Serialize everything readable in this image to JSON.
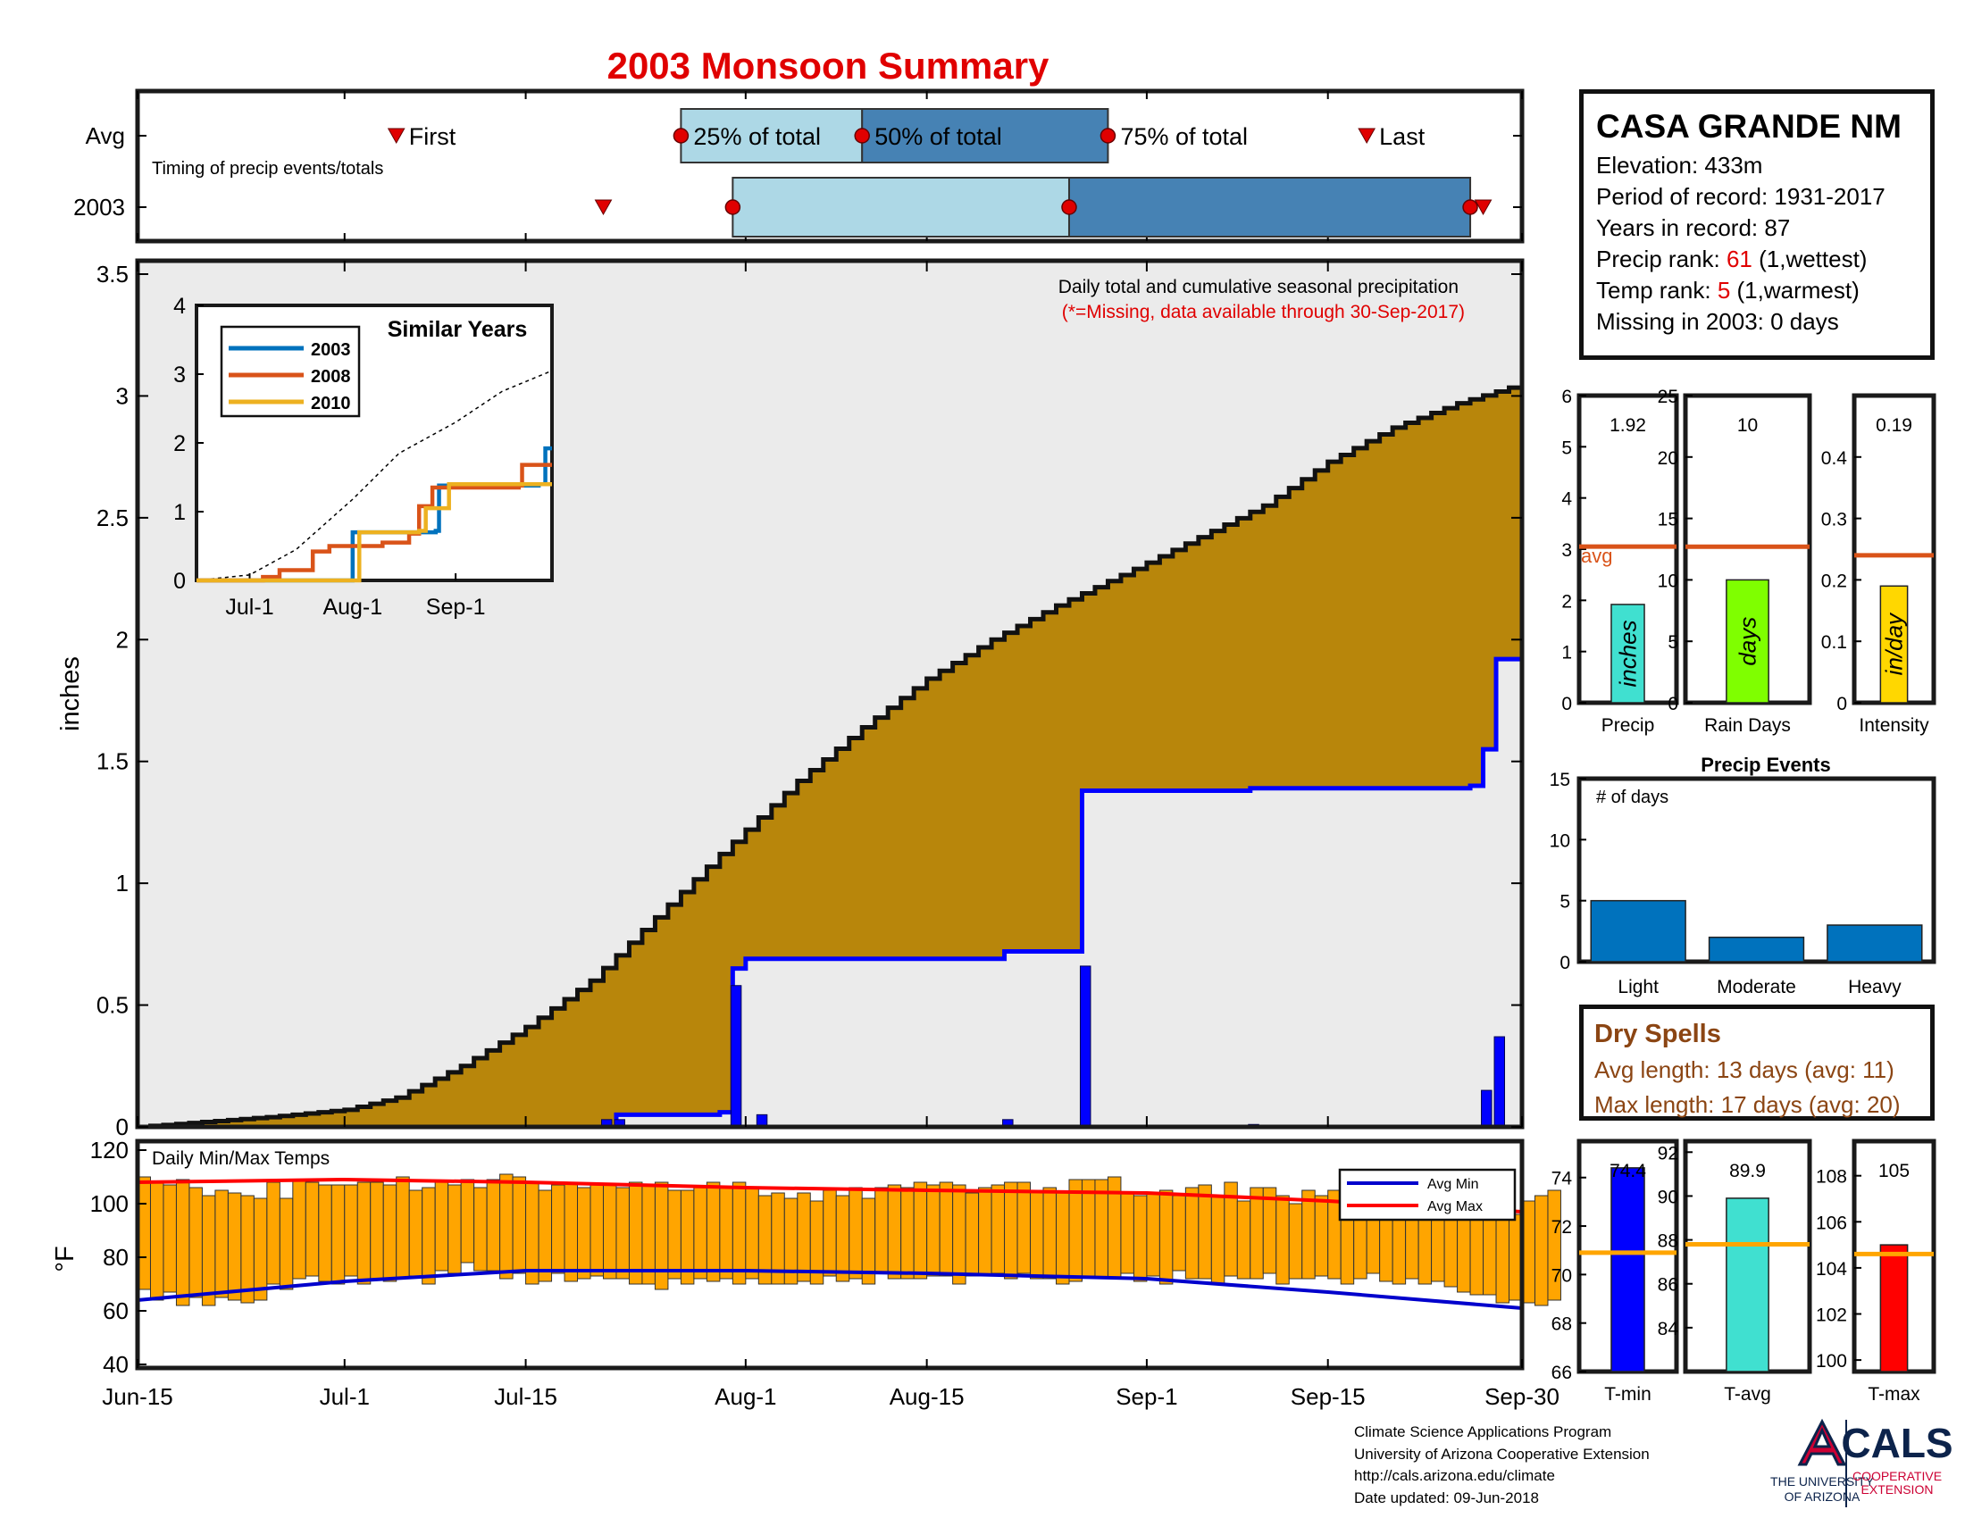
{
  "title": "2003 Monsoon Summary",
  "station": {
    "name": "CASA GRANDE NM",
    "elevation": "Elevation: 433m",
    "period": "Period of record: 1931-2017",
    "years": "Years in record: 87",
    "precip_rank_label": "Precip rank: ",
    "precip_rank": "61",
    "precip_rank_note": " (1,wettest)",
    "temp_rank_label": "Temp rank: ",
    "temp_rank": "5",
    "temp_rank_note": " (1,warmest)",
    "missing": "Missing in 2003: 0 days"
  },
  "dry_spells": {
    "title": "Dry Spells",
    "avg": "Avg length: 13 days (avg: 11)",
    "max": "Max length: 17 days (avg: 20)"
  },
  "credits": {
    "line1": "Climate Science Applications Program",
    "line2": "University of Arizona Cooperative Extension",
    "line3": "http://cals.arizona.edu/climate",
    "line4": " Date updated: 09-Jun-2018",
    "ua_line1": "THE UNIVERSITY",
    "ua_line2": "OF ARIZONA",
    "cals": "CALS",
    "cals_line1": "COOPERATIVE",
    "cals_line2": "EXTENSION"
  },
  "colors": {
    "avg_fill": "#b8860b",
    "year_line": "#0000ff",
    "temp_bar": "#ffa500",
    "avg_min": "#0000cc",
    "avg_max": "#ff0000",
    "box_light": "#add8e6",
    "box_dark": "#4682b4",
    "marker": "#e00000"
  },
  "chart_data": [
    {
      "id": "timing",
      "type": "box",
      "subtitle": "Timing of precip events/totals",
      "rows": [
        {
          "label": "Avg",
          "first": "2003-07-05",
          "q25": "2003-07-27",
          "q50": "2003-08-10",
          "q75": "2003-08-29",
          "last": "2003-09-18"
        },
        {
          "label": "2003",
          "first": "2003-07-21",
          "q25": "2003-07-31",
          "q50": "2003-08-26",
          "q75": "2003-09-26",
          "last": "2003-09-27"
        }
      ],
      "legend": [
        "First",
        "25% of total",
        "50% of total",
        "75% of total",
        "Last"
      ]
    },
    {
      "id": "main",
      "type": "area",
      "annotation": "Daily total and cumulative seasonal precipitation",
      "annotation2": "(*=Missing, data available through 30-Sep-2017)",
      "ylabel": "inches",
      "ylim": [
        0,
        3.5
      ],
      "yticks": [
        "0",
        "0.5",
        "1",
        "1.5",
        "2",
        "2.5",
        "3",
        "3.5"
      ],
      "xticks": [
        "Jun-15",
        "Jul-1",
        "Jul-15",
        "Aug-1",
        "Aug-15",
        "Sep-1",
        "Sep-15",
        "Sep-30"
      ],
      "avg_cumulative": {
        "x": [
          "2003-06-15",
          "2003-06-20",
          "2003-06-25",
          "2003-07-01",
          "2003-07-05",
          "2003-07-10",
          "2003-07-15",
          "2003-07-20",
          "2003-07-25",
          "2003-07-30",
          "2003-08-05",
          "2003-08-10",
          "2003-08-15",
          "2003-08-20",
          "2003-08-25",
          "2003-08-31",
          "2003-09-05",
          "2003-09-10",
          "2003-09-15",
          "2003-09-20",
          "2003-09-25",
          "2003-09-30"
        ],
        "values": [
          0.0,
          0.02,
          0.04,
          0.07,
          0.12,
          0.25,
          0.41,
          0.6,
          0.86,
          1.12,
          1.42,
          1.64,
          1.84,
          2.0,
          2.14,
          2.29,
          2.42,
          2.55,
          2.73,
          2.87,
          2.97,
          3.05
        ]
      },
      "series_cumulative": {
        "x": [
          "2003-06-15",
          "2003-07-21",
          "2003-07-22",
          "2003-07-30",
          "2003-07-31",
          "2003-08-01",
          "2003-08-20",
          "2003-08-21",
          "2003-08-26",
          "2003-08-27",
          "2003-09-08",
          "2003-09-09",
          "2003-09-26",
          "2003-09-27",
          "2003-09-28",
          "2003-09-30"
        ],
        "values": [
          0.0,
          0.0,
          0.05,
          0.06,
          0.65,
          0.69,
          0.69,
          0.72,
          0.72,
          1.38,
          1.38,
          1.39,
          1.4,
          1.55,
          1.92,
          1.92
        ]
      },
      "daily_bars": {
        "x": [
          "2003-07-21",
          "2003-07-22",
          "2003-07-31",
          "2003-08-02",
          "2003-08-21",
          "2003-08-27",
          "2003-09-09",
          "2003-09-27",
          "2003-09-28"
        ],
        "values": [
          0.03,
          0.03,
          0.58,
          0.05,
          0.03,
          0.66,
          0.01,
          0.15,
          0.37
        ]
      }
    },
    {
      "id": "similar",
      "type": "line",
      "title": "Similar Years",
      "ylim": [
        0,
        4
      ],
      "yticks": [
        "0",
        "1",
        "2",
        "3",
        "4"
      ],
      "xticks": [
        "Jul-1",
        "Aug-1",
        "Sep-1"
      ],
      "average": {
        "x": [
          "2003-06-15",
          "2003-07-01",
          "2003-07-15",
          "2003-08-01",
          "2003-08-15",
          "2003-09-01",
          "2003-09-15",
          "2003-09-30"
        ],
        "values": [
          0,
          0.08,
          0.45,
          1.18,
          1.85,
          2.3,
          2.75,
          3.05
        ]
      },
      "series": [
        {
          "name": "2003",
          "x": [
            "2003-06-15",
            "2003-07-31",
            "2003-08-01",
            "2003-08-26",
            "2003-08-27",
            "2003-09-26",
            "2003-09-28",
            "2003-09-30"
          ],
          "values": [
            0,
            0,
            0.7,
            0.72,
            1.38,
            1.4,
            1.92,
            1.92
          ]
        },
        {
          "name": "2008",
          "x": [
            "2003-06-15",
            "2003-07-05",
            "2003-07-10",
            "2003-07-20",
            "2003-07-25",
            "2003-08-10",
            "2003-08-18",
            "2003-08-21",
            "2003-08-25",
            "2003-09-01",
            "2003-09-20",
            "2003-09-21",
            "2003-09-30"
          ],
          "values": [
            0,
            0.05,
            0.15,
            0.42,
            0.5,
            0.55,
            0.68,
            1.08,
            1.35,
            1.35,
            1.38,
            1.68,
            1.68
          ]
        },
        {
          "name": "2010",
          "x": [
            "2003-06-15",
            "2003-08-02",
            "2003-08-03",
            "2003-08-21",
            "2003-08-23",
            "2003-08-28",
            "2003-08-30",
            "2003-09-30"
          ],
          "values": [
            0,
            0,
            0.7,
            0.72,
            1.05,
            1.05,
            1.4,
            1.4
          ]
        }
      ]
    },
    {
      "id": "temps",
      "type": "bar",
      "title": "Daily Min/Max Temps",
      "ylabel": "°F",
      "ylim": [
        40,
        120
      ],
      "yticks": [
        "40",
        "60",
        "80",
        "100",
        "120"
      ],
      "avg_min": {
        "x": [
          "2003-06-15",
          "2003-07-01",
          "2003-07-15",
          "2003-08-01",
          "2003-08-15",
          "2003-09-01",
          "2003-09-15",
          "2003-09-30"
        ],
        "values": [
          64,
          71,
          75,
          75,
          74,
          72,
          67,
          61
        ]
      },
      "avg_max": {
        "x": [
          "2003-06-15",
          "2003-07-01",
          "2003-07-15",
          "2003-08-01",
          "2003-08-15",
          "2003-09-01",
          "2003-09-15",
          "2003-09-30"
        ],
        "values": [
          108,
          109,
          108,
          106,
          105,
          104,
          101,
          97
        ]
      },
      "daily_min": [
        68,
        64,
        67,
        62,
        65,
        62,
        65,
        64,
        63,
        64,
        70,
        68,
        72,
        73,
        71,
        70,
        73,
        70,
        72,
        71,
        72,
        73,
        70,
        75,
        74,
        78,
        75,
        75,
        72,
        74,
        70,
        71,
        74,
        71,
        72,
        73,
        72,
        72,
        70,
        70,
        68,
        72,
        70,
        72,
        71,
        72,
        70,
        72,
        70,
        70,
        70,
        71,
        70,
        73,
        71,
        72,
        70,
        74,
        72,
        72,
        72,
        73,
        73,
        70,
        73,
        73,
        74,
        72,
        74,
        72,
        72,
        70,
        71,
        73,
        72,
        72,
        74,
        71,
        73,
        70,
        75,
        72,
        72,
        70,
        73,
        72,
        72,
        74,
        70,
        72,
        72,
        73,
        72,
        70,
        72,
        74,
        71,
        70,
        72,
        70,
        71,
        69,
        67,
        66,
        66,
        63,
        64,
        63,
        62,
        64
      ],
      "daily_max": [
        110,
        108,
        107,
        109,
        106,
        103,
        105,
        104,
        103,
        102,
        108,
        102,
        109,
        108,
        107,
        107,
        107,
        108,
        108,
        107,
        110,
        105,
        106,
        108,
        107,
        109,
        106,
        109,
        111,
        110,
        108,
        105,
        107,
        108,
        106,
        107,
        107,
        106,
        108,
        107,
        108,
        105,
        105,
        106,
        108,
        106,
        108,
        106,
        103,
        104,
        102,
        104,
        101,
        105,
        103,
        106,
        102,
        106,
        107,
        106,
        108,
        107,
        108,
        107,
        104,
        106,
        107,
        108,
        108,
        105,
        106,
        104,
        109,
        109,
        109,
        110,
        104,
        103,
        104,
        105,
        103,
        106,
        107,
        103,
        108,
        101,
        106,
        106,
        103,
        100,
        105,
        103,
        105,
        106,
        103,
        101,
        100,
        102,
        99,
        102,
        102,
        104,
        103,
        102,
        98,
        97,
        96,
        101,
        103,
        105
      ],
      "legend": [
        "Avg Min",
        "Avg Max"
      ]
    },
    {
      "id": "precip_total",
      "type": "bar",
      "xlabel": "Precip",
      "value": 1.92,
      "value_label": "1.92",
      "avg": 3.05,
      "avg_label": "avg",
      "bar_label": "inches",
      "ylim": [
        0,
        6
      ],
      "yticks": [
        "0",
        "1",
        "2",
        "3",
        "4",
        "5",
        "6"
      ],
      "color": "#40e0d0"
    },
    {
      "id": "rain_days",
      "type": "bar",
      "xlabel": "Rain Days",
      "value": 10,
      "value_label": "10",
      "avg": 12.7,
      "bar_label": "days",
      "ylim": [
        0,
        25
      ],
      "yticks": [
        "0",
        "5",
        "10",
        "15",
        "20",
        "25"
      ],
      "color": "#7fff00"
    },
    {
      "id": "intensity",
      "type": "bar",
      "xlabel": "Intensity",
      "value": 0.19,
      "value_label": "0.19",
      "avg": 0.24,
      "bar_label": "in/day",
      "ylim": [
        0,
        0.5
      ],
      "yticks": [
        "0",
        "0.1",
        "0.2",
        "0.3",
        "0.4"
      ],
      "color": "#ffd700"
    },
    {
      "id": "precip_events",
      "type": "bar",
      "title": "Precip Events",
      "annotation": "# of days",
      "categories": [
        "Light",
        "Moderate",
        "Heavy"
      ],
      "values": [
        5,
        2,
        3
      ],
      "ylim": [
        0,
        15
      ],
      "yticks": [
        "0",
        "5",
        "10",
        "15"
      ],
      "color": "#0072bd"
    },
    {
      "id": "tmin",
      "type": "bar",
      "xlabel": "T-min",
      "value": 74.4,
      "value_label": "74.4",
      "avg": 70.9,
      "ylim": [
        66,
        75.5
      ],
      "yticks": [
        "66",
        "68",
        "70",
        "72",
        "74"
      ],
      "color": "#0000ff"
    },
    {
      "id": "tavg",
      "type": "bar",
      "xlabel": "T-avg",
      "value": 89.9,
      "value_label": "89.9",
      "avg": 87.8,
      "ylim": [
        82,
        92.5
      ],
      "yticks": [
        "84",
        "86",
        "88",
        "90",
        "92"
      ],
      "color": "#40e0d0"
    },
    {
      "id": "tmax",
      "type": "bar",
      "xlabel": "T-max",
      "value": 105,
      "value_label": "105",
      "avg": 104.6,
      "ylim": [
        99.5,
        109.5
      ],
      "yticks": [
        "100",
        "102",
        "104",
        "106",
        "108"
      ],
      "color": "#ff0000"
    }
  ]
}
